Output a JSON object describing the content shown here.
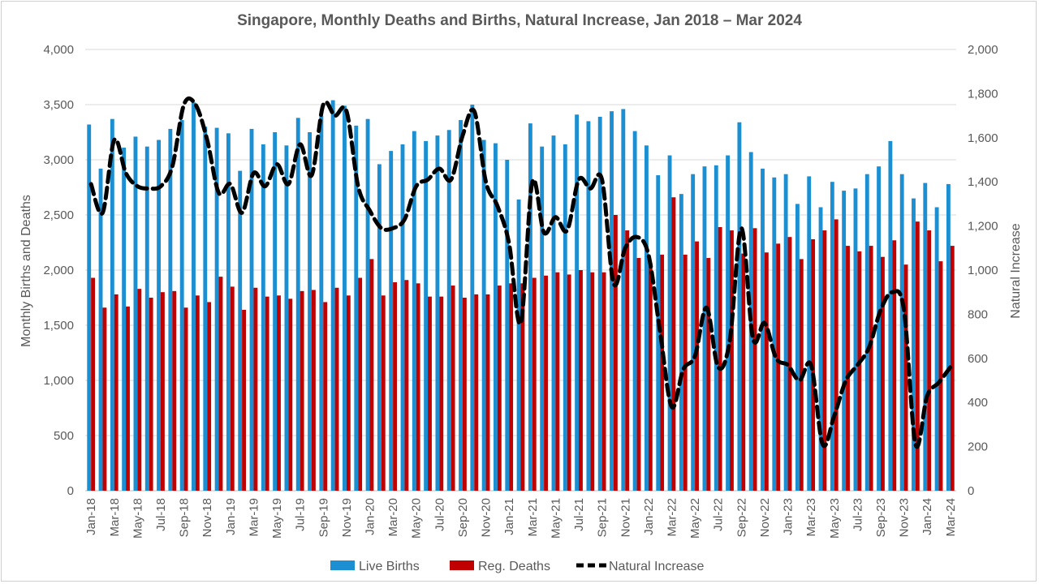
{
  "chart_data": {
    "type": "bar",
    "title": "Singapore, Monthly Deaths and Births, Natural Increase, Jan 2018 – Mar 2024",
    "ylabel": "Monthly Births and Deaths",
    "y2label": "Natural Increase",
    "ylim": [
      0,
      4000
    ],
    "y2lim": [
      0,
      2000
    ],
    "yticks": [
      "0",
      "500",
      "1,000",
      "1,500",
      "2,000",
      "2,500",
      "3,000",
      "3,500",
      "4,000"
    ],
    "y2ticks": [
      "0",
      "200",
      "400",
      "600",
      "800",
      "1,000",
      "1,200",
      "1,400",
      "1,600",
      "1,800",
      "2,000"
    ],
    "grid": true,
    "legend_position": "bottom",
    "colors": {
      "births": "#1b8fd1",
      "deaths": "#c00000",
      "natural": "#000000"
    },
    "x_labels": [
      "Jan-18",
      "Mar-18",
      "May-18",
      "Jul-18",
      "Sep-18",
      "Nov-18",
      "Jan-19",
      "Mar-19",
      "May-19",
      "Jul-19",
      "Sep-19",
      "Nov-19",
      "Jan-20",
      "Mar-20",
      "May-20",
      "Jul-20",
      "Sep-20",
      "Nov-20",
      "Jan-21",
      "Mar-21",
      "May-21",
      "Jul-21",
      "Sep-21",
      "Nov-21",
      "Jan-22",
      "Mar-22",
      "May-22",
      "Jul-22",
      "Sep-22",
      "Nov-22",
      "Jan-23",
      "Mar-23",
      "May-23",
      "Jul-23",
      "Sep-23",
      "Nov-23",
      "Jan-24",
      "Mar-24"
    ],
    "categories": [
      "Jan-18",
      "Feb-18",
      "Mar-18",
      "Apr-18",
      "May-18",
      "Jun-18",
      "Jul-18",
      "Aug-18",
      "Sep-18",
      "Oct-18",
      "Nov-18",
      "Dec-18",
      "Jan-19",
      "Feb-19",
      "Mar-19",
      "Apr-19",
      "May-19",
      "Jun-19",
      "Jul-19",
      "Aug-19",
      "Sep-19",
      "Oct-19",
      "Nov-19",
      "Dec-19",
      "Jan-20",
      "Feb-20",
      "Mar-20",
      "Apr-20",
      "May-20",
      "Jun-20",
      "Jul-20",
      "Aug-20",
      "Sep-20",
      "Oct-20",
      "Nov-20",
      "Dec-20",
      "Jan-21",
      "Feb-21",
      "Mar-21",
      "Apr-21",
      "May-21",
      "Jun-21",
      "Jul-21",
      "Aug-21",
      "Sep-21",
      "Oct-21",
      "Nov-21",
      "Dec-21",
      "Jan-22",
      "Feb-22",
      "Mar-22",
      "Apr-22",
      "May-22",
      "Jun-22",
      "Jul-22",
      "Aug-22",
      "Sep-22",
      "Oct-22",
      "Nov-22",
      "Dec-22",
      "Jan-23",
      "Feb-23",
      "Mar-23",
      "Apr-23",
      "May-23",
      "Jun-23",
      "Jul-23",
      "Aug-23",
      "Sep-23",
      "Oct-23",
      "Nov-23",
      "Dec-23",
      "Jan-24",
      "Feb-24",
      "Mar-24"
    ],
    "series": [
      {
        "name": "Live Births",
        "kind": "bar",
        "values": [
          3320,
          2920,
          3370,
          3110,
          3210,
          3120,
          3180,
          3280,
          3360,
          3520,
          3300,
          3290,
          3240,
          2900,
          3280,
          3140,
          3250,
          3130,
          3380,
          3250,
          3400,
          3540,
          3490,
          3310,
          3370,
          2960,
          3080,
          3140,
          3260,
          3170,
          3220,
          3270,
          3360,
          3500,
          3180,
          3150,
          3000,
          2640,
          3330,
          3120,
          3220,
          3140,
          3410,
          3350,
          3390,
          3440,
          3460,
          3260,
          3130,
          2860,
          3040,
          2690,
          2870,
          2940,
          2950,
          3040,
          3340,
          3070,
          2920,
          2840,
          2870,
          2600,
          2850,
          2570,
          2800,
          2720,
          2740,
          2870,
          2940,
          3170,
          2870,
          2650,
          2790,
          2570,
          2780
        ]
      },
      {
        "name": "Reg. Deaths",
        "kind": "bar",
        "values": [
          1930,
          1660,
          1780,
          1670,
          1830,
          1750,
          1800,
          1810,
          1660,
          1770,
          1710,
          1940,
          1850,
          1640,
          1840,
          1760,
          1770,
          1740,
          1810,
          1820,
          1710,
          1840,
          1770,
          1930,
          2100,
          1770,
          1890,
          1910,
          1880,
          1760,
          1760,
          1860,
          1750,
          1780,
          1780,
          1860,
          1880,
          1880,
          1930,
          1950,
          1980,
          1960,
          2000,
          1980,
          1980,
          2500,
          2360,
          2110,
          2060,
          2140,
          2660,
          2140,
          2260,
          2110,
          2390,
          2360,
          2150,
          2380,
          2160,
          2240,
          2300,
          2100,
          2280,
          2360,
          2460,
          2220,
          2170,
          2220,
          2120,
          2270,
          2050,
          2440,
          2360,
          2080,
          2220
        ]
      },
      {
        "name": "Natural Increase",
        "kind": "line",
        "values": [
          1390,
          1260,
          1590,
          1440,
          1380,
          1370,
          1380,
          1470,
          1750,
          1750,
          1590,
          1350,
          1390,
          1260,
          1440,
          1380,
          1480,
          1390,
          1570,
          1430,
          1750,
          1700,
          1720,
          1380,
          1270,
          1190,
          1190,
          1230,
          1380,
          1410,
          1460,
          1410,
          1610,
          1720,
          1400,
          1290,
          1120,
          760,
          1400,
          1170,
          1240,
          1180,
          1410,
          1370,
          1410,
          940,
          1100,
          1150,
          1070,
          720,
          380,
          550,
          610,
          830,
          560,
          680,
          1190,
          690,
          760,
          600,
          570,
          500,
          570,
          210,
          340,
          500,
          570,
          650,
          820,
          900,
          820,
          210,
          430,
          490,
          560
        ]
      }
    ]
  }
}
